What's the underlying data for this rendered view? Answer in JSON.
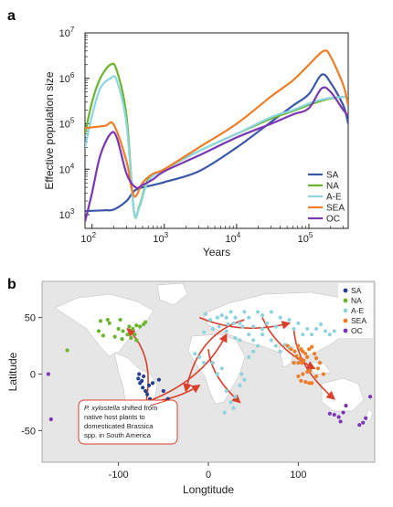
{
  "figure": {
    "panel_a_label": "a",
    "panel_b_label": "b"
  },
  "chart_data": [
    {
      "type": "line",
      "title": "",
      "xlabel": "Years",
      "ylabel": "Effective population size",
      "xscale": "log",
      "yscale": "log",
      "xlim": [
        80,
        350000
      ],
      "ylim": [
        500,
        10000000
      ],
      "x_ticks": [
        {
          "value": 100,
          "base": "10",
          "exp": "2"
        },
        {
          "value": 1000,
          "base": "10",
          "exp": "3"
        },
        {
          "value": 10000,
          "base": "10",
          "exp": "4"
        },
        {
          "value": 100000,
          "base": "10",
          "exp": "5"
        }
      ],
      "y_ticks": [
        {
          "value": 1000,
          "base": "10",
          "exp": "3"
        },
        {
          "value": 10000,
          "base": "10",
          "exp": "4"
        },
        {
          "value": 100000,
          "base": "10",
          "exp": "5"
        },
        {
          "value": 1000000,
          "base": "10",
          "exp": "6"
        },
        {
          "value": 10000000,
          "base": "10",
          "exp": "7"
        }
      ],
      "legend_position": "bottom-right",
      "series": [
        {
          "name": "SA",
          "color": "#3a56a8",
          "x": [
            80,
            150,
            200,
            300,
            400,
            700,
            1000,
            3000,
            10000,
            30000,
            60000,
            100000,
            150000,
            200000,
            300000,
            350000
          ],
          "y": [
            1200,
            1250,
            1300,
            2000,
            3500,
            4500,
            5200,
            9000,
            30000,
            110000,
            250000,
            450000,
            1200000,
            800000,
            250000,
            100000
          ]
        },
        {
          "name": "NA",
          "color": "#6ab42e",
          "x": [
            80,
            100,
            130,
            180,
            220,
            300,
            380,
            450,
            600,
            1000,
            3000,
            10000,
            30000,
            60000,
            100000,
            150000,
            200000,
            300000,
            350000
          ],
          "y": [
            60000,
            300000,
            1000000,
            2000000,
            1500000,
            150000,
            1200,
            1500,
            6000,
            10000,
            25000,
            60000,
            130000,
            190000,
            260000,
            320000,
            360000,
            390000,
            400000
          ]
        },
        {
          "name": "A-E",
          "color": "#8cd6e2",
          "x": [
            80,
            100,
            130,
            180,
            220,
            300,
            380,
            450,
            600,
            1000,
            3000,
            10000,
            30000,
            60000,
            100000,
            150000,
            200000,
            300000,
            350000
          ],
          "y": [
            30000,
            150000,
            600000,
            1000000,
            900000,
            100000,
            1200,
            1400,
            5500,
            10000,
            25000,
            60000,
            140000,
            200000,
            280000,
            340000,
            370000,
            390000,
            400000
          ]
        },
        {
          "name": "SEA",
          "color": "#ee7d27",
          "x": [
            80,
            150,
            200,
            300,
            350,
            400,
            500,
            700,
            1000,
            3000,
            10000,
            30000,
            60000,
            100000,
            160000,
            200000,
            300000,
            350000
          ],
          "y": [
            80000,
            90000,
            95000,
            15000,
            4000,
            2500,
            5000,
            8000,
            10000,
            30000,
            100000,
            400000,
            900000,
            2000000,
            4000000,
            3000000,
            700000,
            250000
          ]
        },
        {
          "name": "OC",
          "color": "#7b36b4",
          "x": [
            80,
            100,
            130,
            180,
            220,
            300,
            400,
            500,
            700,
            1000,
            3000,
            10000,
            30000,
            60000,
            100000,
            150000,
            200000,
            300000,
            350000
          ],
          "y": [
            700,
            3000,
            20000,
            60000,
            50000,
            8000,
            4000,
            4500,
            6000,
            9000,
            20000,
            50000,
            100000,
            160000,
            220000,
            600000,
            500000,
            200000,
            150000
          ]
        }
      ]
    },
    {
      "type": "scatter",
      "title": "",
      "xlabel": "Longtitude",
      "ylabel": "Latitude",
      "xlim": [
        -185,
        185
      ],
      "ylim": [
        -78,
        82
      ],
      "x_ticks": [
        -100,
        0,
        100
      ],
      "y_ticks": [
        50,
        0,
        -50
      ],
      "legend_position": "top-right",
      "series": [
        {
          "name": "SA",
          "color": "#253f8f",
          "points": [
            [
              -77,
              0
            ],
            [
              -78,
              -4
            ],
            [
              -76,
              -8
            ],
            [
              -73,
              -12
            ],
            [
              -70,
              -15
            ],
            [
              -68,
              -18
            ],
            [
              -65,
              -22
            ],
            [
              -62,
              -25
            ],
            [
              -60,
              -30
            ],
            [
              -58,
              -33
            ],
            [
              -56,
              -34
            ],
            [
              -72,
              -2
            ],
            [
              -74,
              -6
            ],
            [
              -66,
              -10
            ],
            [
              -50,
              -15
            ],
            [
              -45,
              -22
            ],
            [
              -62,
              -8
            ],
            [
              -55,
              -5
            ]
          ]
        },
        {
          "name": "NA",
          "color": "#6ab42e",
          "points": [
            [
              -120,
              47
            ],
            [
              -110,
              45
            ],
            [
              -100,
              40
            ],
            [
              -95,
              38
            ],
            [
              -88,
              42
            ],
            [
              -84,
              40
            ],
            [
              -80,
              43
            ],
            [
              -76,
              42
            ],
            [
              -72,
              44
            ],
            [
              -70,
              46
            ],
            [
              -90,
              35
            ],
            [
              -96,
              31
            ],
            [
              -82,
              35
            ],
            [
              -104,
              33
            ],
            [
              -117,
              34
            ],
            [
              -122,
              38
            ],
            [
              -112,
              48
            ],
            [
              -98,
              48
            ],
            [
              -86,
              32
            ],
            [
              -80,
              30
            ],
            [
              -157,
              21
            ]
          ]
        },
        {
          "name": "A-E",
          "color": "#8fd3de",
          "points": [
            [
              -3,
              53
            ],
            [
              2,
              48
            ],
            [
              10,
              50
            ],
            [
              15,
              52
            ],
            [
              20,
              50
            ],
            [
              25,
              55
            ],
            [
              30,
              50
            ],
            [
              35,
              45
            ],
            [
              40,
              55
            ],
            [
              45,
              50
            ],
            [
              55,
              55
            ],
            [
              60,
              52
            ],
            [
              70,
              55
            ],
            [
              80,
              50
            ],
            [
              90,
              48
            ],
            [
              100,
              45
            ],
            [
              110,
              40
            ],
            [
              115,
              35
            ],
            [
              120,
              40
            ],
            [
              125,
              44
            ],
            [
              130,
              38
            ],
            [
              135,
              35
            ],
            [
              140,
              38
            ],
            [
              5,
              40
            ],
            [
              12,
              42
            ],
            [
              -5,
              37
            ],
            [
              20,
              38
            ],
            [
              30,
              32
            ],
            [
              35,
              30
            ],
            [
              45,
              35
            ],
            [
              50,
              30
            ],
            [
              55,
              25
            ],
            [
              60,
              35
            ],
            [
              70,
              30
            ],
            [
              75,
              25
            ],
            [
              80,
              20
            ],
            [
              85,
              26
            ],
            [
              90,
              23
            ],
            [
              45,
              15
            ],
            [
              50,
              20
            ],
            [
              20,
              -15
            ],
            [
              25,
              -25
            ],
            [
              28,
              -30
            ],
            [
              18,
              -34
            ],
            [
              30,
              -20
            ],
            [
              35,
              -10
            ],
            [
              37,
              0
            ],
            [
              40,
              -5
            ],
            [
              15,
              5
            ],
            [
              10,
              0
            ],
            [
              5,
              10
            ],
            [
              -5,
              10
            ],
            [
              -10,
              15
            ],
            [
              -15,
              18
            ],
            [
              105,
              35
            ],
            [
              95,
              40
            ],
            [
              65,
              45
            ],
            [
              75,
              42
            ],
            [
              38,
              42
            ],
            [
              60,
              40
            ],
            [
              50,
              42
            ],
            [
              28,
              45
            ],
            [
              22,
              44
            ]
          ]
        },
        {
          "name": "SEA",
          "color": "#ee7d27",
          "points": [
            [
              100,
              25
            ],
            [
              103,
              22
            ],
            [
              105,
              20
            ],
            [
              108,
              18
            ],
            [
              110,
              15
            ],
            [
              102,
              14
            ],
            [
              100,
              10
            ],
            [
              104,
              10
            ],
            [
              106,
              12
            ],
            [
              112,
              22
            ],
            [
              115,
              24
            ],
            [
              110,
              2
            ],
            [
              105,
              0
            ],
            [
              100,
              -2
            ],
            [
              103,
              -6
            ],
            [
              108,
              -7
            ],
            [
              112,
              -8
            ],
            [
              115,
              -8
            ],
            [
              120,
              -2
            ],
            [
              122,
              5
            ],
            [
              120,
              14
            ],
            [
              124,
              10
            ],
            [
              128,
              0
            ],
            [
              96,
              20
            ],
            [
              98,
              16
            ],
            [
              95,
              10
            ],
            [
              92,
              22
            ],
            [
              88,
              25
            ],
            [
              113,
              3
            ],
            [
              118,
              18
            ]
          ]
        },
        {
          "name": "OC",
          "color": "#7b36b4",
          "points": [
            [
              145,
              -38
            ],
            [
              150,
              -34
            ],
            [
              153,
              -28
            ],
            [
              147,
              -42
            ],
            [
              175,
              -39
            ],
            [
              172,
              -43
            ],
            [
              168,
              -45
            ],
            [
              140,
              -36
            ],
            [
              135,
              -35
            ],
            [
              -178,
              0
            ],
            [
              -175,
              -40
            ],
            [
              180,
              -20
            ]
          ]
        }
      ],
      "arrows": [
        {
          "from": [
            -70,
            -28
          ],
          "to": [
            -90,
            40
          ]
        },
        {
          "from": [
            -70,
            -25
          ],
          "to": [
            20,
            35
          ]
        },
        {
          "from": [
            -70,
            -25
          ],
          "to": [
            -10,
            -10
          ]
        },
        {
          "from": [
            -10,
            50
          ],
          "to": [
            90,
            45
          ]
        },
        {
          "from": [
            60,
            50
          ],
          "to": [
            118,
            5
          ]
        },
        {
          "from": [
            95,
            40
          ],
          "to": [
            140,
            -22
          ]
        },
        {
          "from": [
            40,
            48
          ],
          "to": [
            -25,
            -15
          ]
        },
        {
          "from": [
            0,
            22
          ],
          "to": [
            35,
            -25
          ]
        }
      ],
      "annotation": {
        "italic": "P. xylostella",
        "lines": [
          " shifted from",
          "native host plants to",
          "domesticated Brassica",
          "spp. in South America"
        ],
        "pointer_to": [
          -65,
          -28
        ]
      }
    }
  ]
}
